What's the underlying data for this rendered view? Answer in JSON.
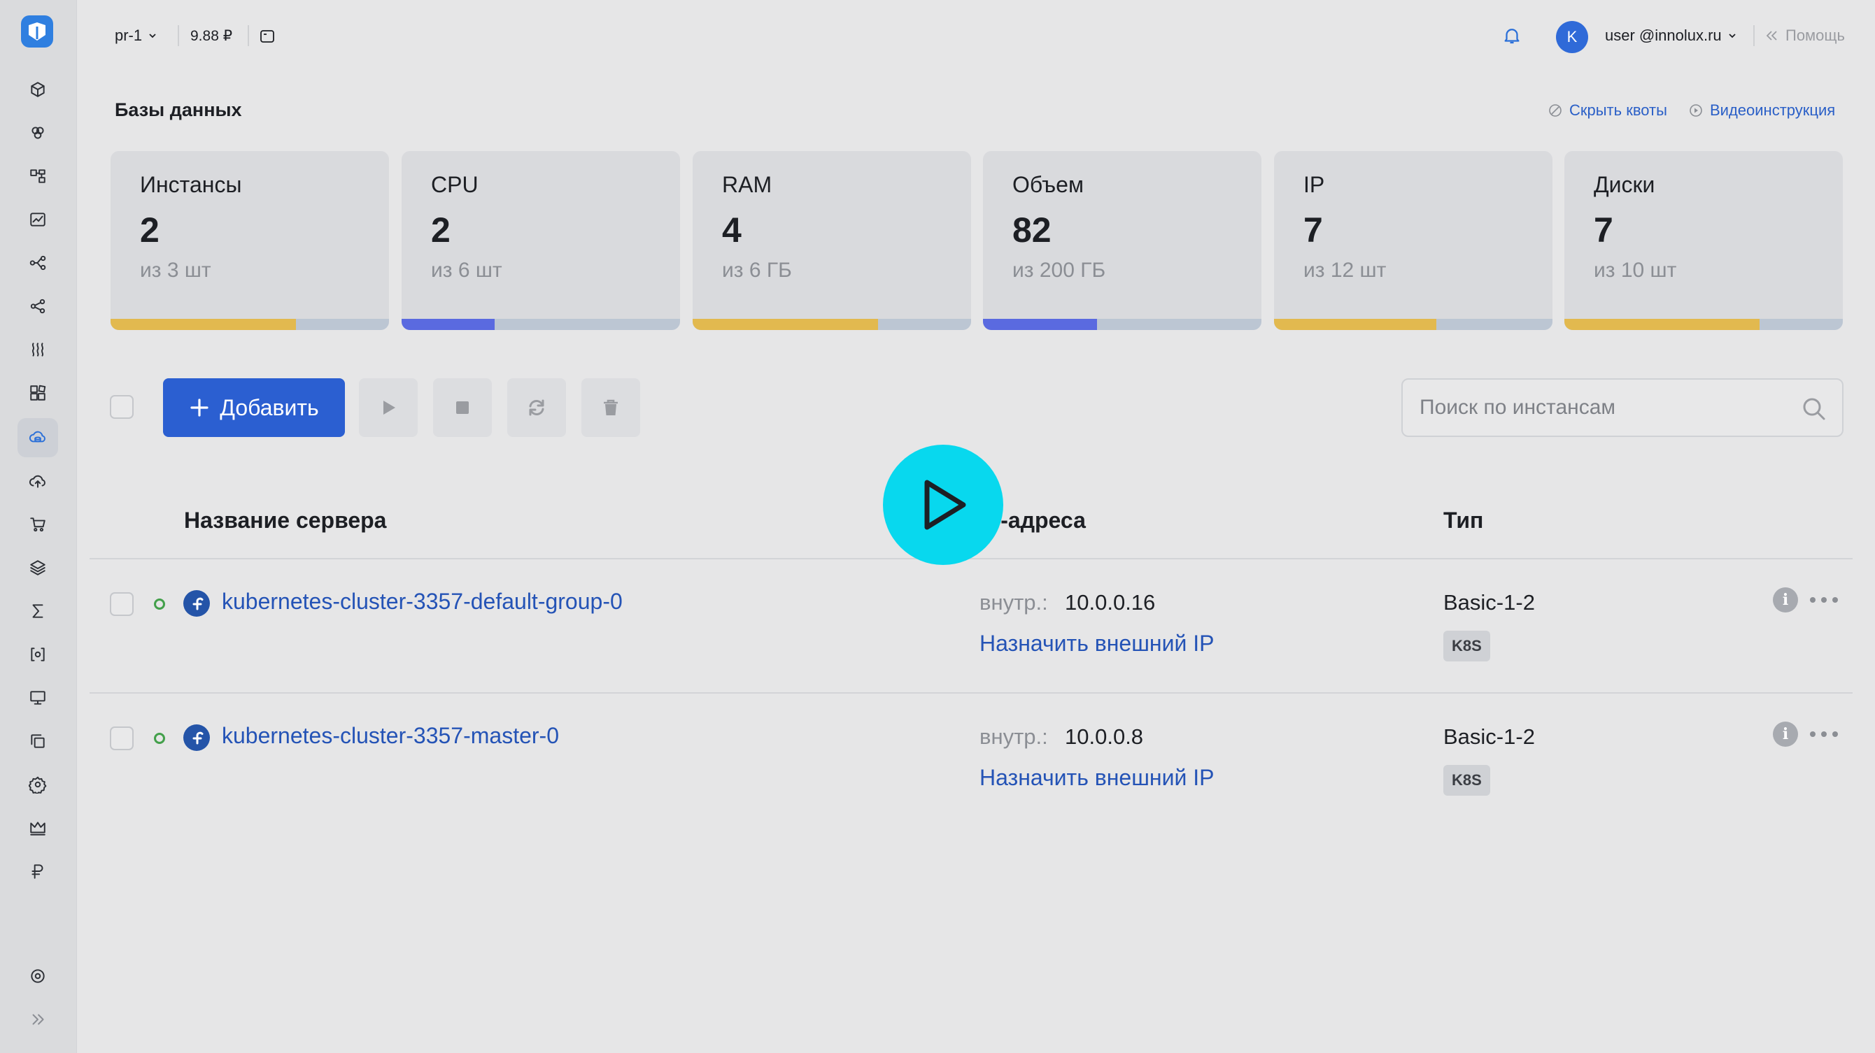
{
  "topbar": {
    "project": "pr-1",
    "balance": "9.88 ₽",
    "avatar_letter": "K",
    "user": "user @innolux.ru",
    "help": "Помощь"
  },
  "header": {
    "title": "Базы данных",
    "hide_quotas": "Скрыть квоты",
    "video": "Видеоинструкция"
  },
  "quotas": [
    {
      "label": "Инстансы",
      "value": "2",
      "limit": "из 3 шт",
      "fraction": 0.667,
      "color": "#e2b94f"
    },
    {
      "label": "CPU",
      "value": "2",
      "limit": "из 6 шт",
      "fraction": 0.333,
      "color": "#5a6ae0"
    },
    {
      "label": "RAM",
      "value": "4",
      "limit": "из 6 ГБ",
      "fraction": 0.667,
      "color": "#e2b94f"
    },
    {
      "label": "Объем",
      "value": "82",
      "limit": "из 200 ГБ",
      "fraction": 0.41,
      "color": "#5a6ae0"
    },
    {
      "label": "IP",
      "value": "7",
      "limit": "из 12 шт",
      "fraction": 0.583,
      "color": "#e2b94f"
    },
    {
      "label": "Диски",
      "value": "7",
      "limit": "из 10 шт",
      "fraction": 0.7,
      "color": "#e2b94f"
    }
  ],
  "toolbar": {
    "add_label": "Добавить",
    "search_placeholder": "Поиск по инстансам"
  },
  "table": {
    "col_name": "Название сервера",
    "col_ip": "IP-адреса",
    "col_type": "Тип",
    "rows": [
      {
        "name": "kubernetes-cluster-3357-default-group-0",
        "ip_label": "внутр.:",
        "ip": "10.0.0.16",
        "assign": "Назначить внешний IP",
        "type": "Basic-1-2",
        "badge": "K8S"
      },
      {
        "name": "kubernetes-cluster-3357-master-0",
        "ip_label": "внутр.:",
        "ip": "10.0.0.8",
        "assign": "Назначить внешний IP",
        "type": "Basic-1-2",
        "badge": "K8S"
      }
    ]
  },
  "colors": {
    "accent": "#2b5fd1",
    "link": "#2453b6",
    "status_ok": "#43a04b",
    "play_overlay": "#08d8ee"
  }
}
